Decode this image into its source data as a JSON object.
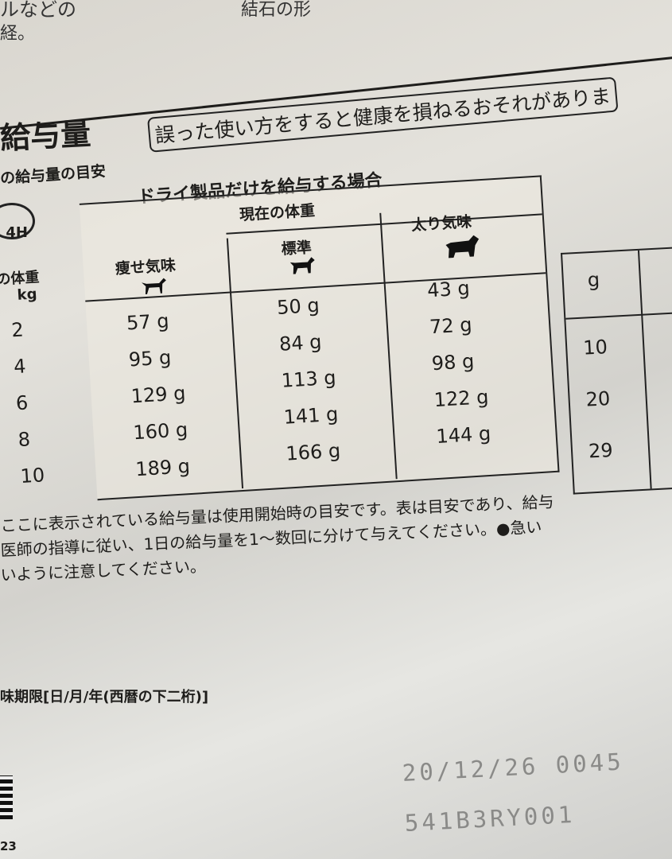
{
  "top_text": {
    "line1": "ルなどの",
    "line2": "経。",
    "line3": "結石の形"
  },
  "section_title": "給与量",
  "subtitle": "の給与量の目安",
  "warning": "誤った使い方をすると健康を損ねるおそれがありま",
  "clock_label": "4H",
  "table": {
    "heading": "ドライ製品だけを給与する場合",
    "group_header": "現在の体重",
    "row_header": {
      "line1": "の体重",
      "line2": "kg"
    },
    "columns": [
      {
        "label": "痩せ気味",
        "icon": "thin-dog-icon"
      },
      {
        "label": "標準",
        "icon": "standard-dog-icon"
      },
      {
        "label": "太り気味",
        "icon": "heavy-dog-icon"
      }
    ],
    "rows": [
      {
        "kg": "2",
        "thin": "57 g",
        "standard": "50 g",
        "heavy": "43 g"
      },
      {
        "kg": "4",
        "thin": "95 g",
        "standard": "84 g",
        "heavy": "72 g"
      },
      {
        "kg": "6",
        "thin": "129 g",
        "standard": "113 g",
        "heavy": "98 g"
      },
      {
        "kg": "8",
        "thin": "160 g",
        "standard": "141 g",
        "heavy": "122 g"
      },
      {
        "kg": "10",
        "thin": "189 g",
        "standard": "166 g",
        "heavy": "144 g"
      }
    ]
  },
  "right_table": {
    "header": "g",
    "values": [
      "10",
      "20",
      "29"
    ]
  },
  "notes": [
    "ここに表示されている給与量は使用開始時の目安です。表は目安であり、給与",
    "医師の指導に従い、1日の給与量を1〜数回に分けて与えてください。●急い",
    "いように注意してください。"
  ],
  "best_before_label": "味期限[日/月/年(西暦の下二桁)]",
  "printed_code": {
    "line1": "20/12/26 0045",
    "line2": "541B3RY001"
  },
  "corner_number": "23"
}
